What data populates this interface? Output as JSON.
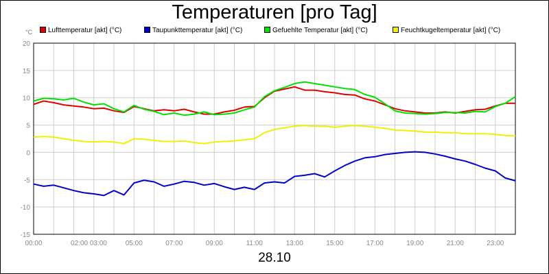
{
  "chart_data": {
    "type": "line",
    "title": "Temperaturen [pro Tag]",
    "xlabel": "28.10",
    "ylabel": "",
    "y_unit": "°C",
    "ylim": [
      -15,
      20
    ],
    "yticks": [
      20,
      15,
      10,
      5,
      0,
      -5,
      -10,
      -15
    ],
    "xlim": [
      0,
      24
    ],
    "xticks": [
      {
        "h": 0,
        "label": "00:00"
      },
      {
        "h": 2.75,
        "label": "02:00 03:00"
      },
      {
        "h": 5,
        "label": "05:00"
      },
      {
        "h": 7,
        "label": "07:00"
      },
      {
        "h": 9,
        "label": "09:00"
      },
      {
        "h": 11,
        "label": "11:00"
      },
      {
        "h": 13,
        "label": "13:00"
      },
      {
        "h": 15,
        "label": "15:00"
      },
      {
        "h": 17,
        "label": "17:00"
      },
      {
        "h": 19,
        "label": "19:00"
      },
      {
        "h": 21,
        "label": "21:00"
      },
      {
        "h": 23,
        "label": "23:00"
      }
    ],
    "grid": true,
    "legend_position": "top",
    "series": [
      {
        "name": "Lufttemperatur [akt] (°C)",
        "color": "#e00000",
        "x": [
          0,
          0.5,
          1,
          1.5,
          2,
          2.5,
          3,
          3.5,
          4,
          4.5,
          5,
          5.5,
          6,
          6.5,
          7,
          7.5,
          8,
          8.5,
          9,
          9.5,
          10,
          10.5,
          11,
          11.5,
          12,
          12.5,
          13,
          13.5,
          14,
          14.5,
          15,
          15.5,
          16,
          16.5,
          17,
          17.5,
          18,
          18.5,
          19,
          19.5,
          20,
          20.5,
          21,
          21.5,
          22,
          22.5,
          23,
          23.5,
          24
        ],
        "values": [
          8.8,
          9.4,
          9.1,
          8.7,
          8.5,
          8.3,
          8.0,
          8.1,
          7.6,
          7.3,
          8.4,
          8.0,
          7.6,
          7.8,
          7.6,
          7.9,
          7.4,
          7.0,
          7.0,
          7.4,
          7.7,
          8.3,
          8.4,
          10.0,
          11.2,
          11.6,
          12.0,
          11.4,
          11.4,
          11.1,
          10.9,
          10.6,
          10.5,
          9.8,
          9.4,
          8.7,
          8.0,
          7.6,
          7.4,
          7.2,
          7.2,
          7.4,
          7.2,
          7.5,
          7.8,
          7.9,
          8.5,
          9.0,
          9.0
        ]
      },
      {
        "name": "Taupunkttemperatur [akt] (°C)",
        "color": "#0000cc",
        "x": [
          0,
          0.5,
          1,
          1.5,
          2,
          2.5,
          3,
          3.5,
          4,
          4.5,
          5,
          5.5,
          6,
          6.5,
          7,
          7.5,
          8,
          8.5,
          9,
          9.5,
          10,
          10.5,
          11,
          11.5,
          12,
          12.5,
          13,
          13.5,
          14,
          14.5,
          15,
          15.5,
          16,
          16.5,
          17,
          17.5,
          18,
          18.5,
          19,
          19.5,
          20,
          20.5,
          21,
          21.5,
          22,
          22.5,
          23,
          23.5,
          24
        ],
        "values": [
          -5.8,
          -6.2,
          -6.0,
          -6.5,
          -7.0,
          -7.4,
          -7.6,
          -7.9,
          -7.0,
          -7.8,
          -5.6,
          -5.1,
          -5.4,
          -6.2,
          -5.8,
          -5.3,
          -5.5,
          -6.0,
          -5.7,
          -6.3,
          -6.8,
          -6.4,
          -6.8,
          -5.6,
          -5.4,
          -5.6,
          -4.4,
          -4.2,
          -3.9,
          -4.5,
          -3.4,
          -2.4,
          -1.6,
          -1.0,
          -0.8,
          -0.4,
          -0.2,
          0.0,
          0.1,
          0.0,
          -0.3,
          -0.7,
          -1.2,
          -1.6,
          -2.2,
          -2.9,
          -3.4,
          -4.7,
          -5.2
        ]
      },
      {
        "name": "Gefuehlte Temperatur [akt] (°C)",
        "color": "#00e000",
        "x": [
          0,
          0.5,
          1,
          1.5,
          2,
          2.5,
          3,
          3.5,
          4,
          4.5,
          5,
          5.5,
          6,
          6.5,
          7,
          7.5,
          8,
          8.5,
          9,
          9.5,
          10,
          10.5,
          11,
          11.5,
          12,
          12.5,
          13,
          13.5,
          14,
          14.5,
          15,
          15.5,
          16,
          16.5,
          17,
          17.5,
          18,
          18.5,
          19,
          19.5,
          20,
          20.5,
          21,
          21.5,
          22,
          22.5,
          23,
          23.5,
          24
        ],
        "values": [
          9.4,
          9.9,
          9.8,
          9.6,
          9.9,
          9.2,
          8.7,
          8.9,
          8.0,
          7.4,
          8.6,
          7.9,
          7.5,
          6.9,
          7.2,
          6.8,
          7.0,
          7.4,
          6.9,
          7.0,
          7.2,
          7.8,
          8.3,
          10.2,
          11.3,
          11.9,
          12.6,
          12.9,
          12.6,
          12.3,
          12.0,
          11.7,
          11.5,
          10.6,
          10.1,
          8.9,
          7.6,
          7.2,
          7.1,
          7.0,
          7.1,
          7.3,
          7.3,
          7.2,
          7.5,
          7.4,
          8.4,
          9.0,
          10.2
        ]
      },
      {
        "name": "Feuchtkugeltemperatur [akt] (°C)",
        "color": "#f0f000",
        "x": [
          0,
          0.5,
          1,
          1.5,
          2,
          2.5,
          3,
          3.5,
          4,
          4.5,
          5,
          5.5,
          6,
          6.5,
          7,
          7.5,
          8,
          8.5,
          9,
          9.5,
          10,
          10.5,
          11,
          11.5,
          12,
          12.5,
          13,
          13.5,
          14,
          14.5,
          15,
          15.5,
          16,
          16.5,
          17,
          17.5,
          18,
          18.5,
          19,
          19.5,
          20,
          20.5,
          21,
          21.5,
          22,
          22.5,
          23,
          23.5,
          24
        ],
        "values": [
          2.8,
          2.9,
          2.8,
          2.5,
          2.2,
          2.0,
          1.9,
          2.0,
          1.9,
          1.6,
          2.5,
          2.4,
          2.2,
          2.0,
          2.0,
          2.1,
          1.8,
          1.6,
          1.9,
          2.0,
          2.1,
          2.3,
          2.5,
          3.6,
          4.2,
          4.5,
          4.8,
          4.9,
          4.8,
          4.8,
          4.6,
          4.8,
          4.9,
          4.8,
          4.6,
          4.4,
          4.1,
          4.0,
          3.9,
          3.7,
          3.7,
          3.6,
          3.6,
          3.4,
          3.4,
          3.4,
          3.3,
          3.1,
          3.0
        ]
      }
    ]
  }
}
